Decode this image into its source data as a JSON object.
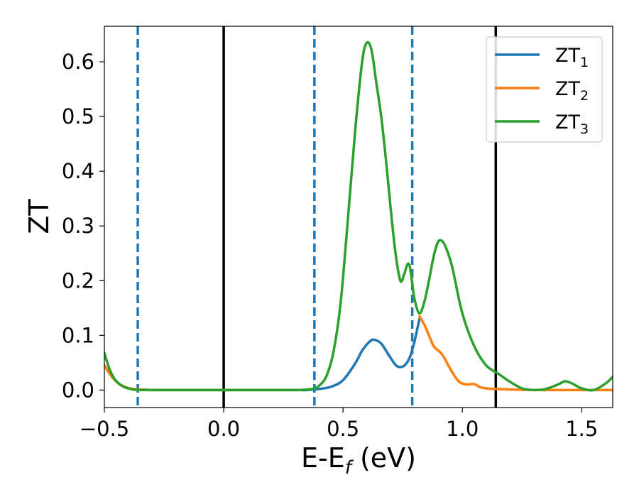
{
  "chart_data": {
    "type": "line",
    "xlabel": "E-E",
    "xlabel_subscript": "f",
    "xlabel_unit": " (eV)",
    "ylabel": "ZT",
    "xlim": [
      -0.5,
      1.63
    ],
    "ylim": [
      -0.032,
      0.665
    ],
    "xticks": [
      -0.5,
      0.0,
      0.5,
      1.0,
      1.5
    ],
    "xtick_labels": [
      "−0.5",
      "0.0",
      "0.5",
      "1.0",
      "1.5"
    ],
    "yticks": [
      0.0,
      0.1,
      0.2,
      0.3,
      0.4,
      0.5,
      0.6
    ],
    "ytick_labels": [
      "0.0",
      "0.1",
      "0.2",
      "0.3",
      "0.4",
      "0.5",
      "0.6"
    ],
    "grid": false,
    "legend_position": "top-right",
    "vertical_lines": [
      {
        "x": -0.36,
        "style": "dashed",
        "color": "#1f77b4"
      },
      {
        "x": 0.0,
        "style": "solid",
        "color": "#000000"
      },
      {
        "x": 0.38,
        "style": "dashed",
        "color": "#1f77b4"
      },
      {
        "x": 0.79,
        "style": "dashed",
        "color": "#1f77b4"
      },
      {
        "x": 1.14,
        "style": "solid",
        "color": "#000000"
      }
    ],
    "series": [
      {
        "name": "ZT",
        "subscript": "1",
        "color": "#1f77b4",
        "x": [
          -0.5,
          -0.47,
          -0.44,
          -0.41,
          -0.38,
          -0.35,
          -0.3,
          -0.2,
          0.0,
          0.2,
          0.3,
          0.35,
          0.4,
          0.45,
          0.5,
          0.55,
          0.58,
          0.61,
          0.63,
          0.66,
          0.69,
          0.72,
          0.74,
          0.76,
          0.78,
          0.8,
          0.82
        ],
        "y": [
          0.045,
          0.025,
          0.012,
          0.005,
          0.002,
          0.001,
          0.0,
          0.0,
          0.0,
          0.0,
          0.0,
          0.0,
          0.002,
          0.006,
          0.018,
          0.048,
          0.072,
          0.088,
          0.092,
          0.085,
          0.065,
          0.046,
          0.042,
          0.046,
          0.06,
          0.09,
          0.13
        ]
      },
      {
        "name": "ZT",
        "subscript": "2",
        "color": "#ff7f0e",
        "x": [
          -0.5,
          -0.47,
          -0.44,
          -0.41,
          -0.38,
          -0.35,
          -0.3,
          -0.2,
          0.0,
          0.2,
          0.3,
          0.82,
          0.84,
          0.86,
          0.88,
          0.9,
          0.92,
          0.95,
          0.98,
          1.0,
          1.02,
          1.05,
          1.07,
          1.1,
          1.14,
          1.2,
          1.3,
          1.4,
          1.5,
          1.63
        ],
        "y": [
          0.045,
          0.025,
          0.012,
          0.005,
          0.002,
          0.001,
          0.0,
          0.0,
          0.0,
          0.0,
          0.0,
          0.135,
          0.12,
          0.1,
          0.08,
          0.072,
          0.062,
          0.038,
          0.018,
          0.012,
          0.01,
          0.011,
          0.006,
          0.003,
          0.002,
          0.001,
          0.0,
          0.0,
          0.0,
          0.0
        ]
      },
      {
        "name": "ZT",
        "subscript": "3",
        "color": "#2ca02c",
        "x": [
          -0.5,
          -0.48,
          -0.46,
          -0.44,
          -0.42,
          -0.4,
          -0.38,
          -0.35,
          -0.3,
          -0.2,
          0.0,
          0.2,
          0.3,
          0.35,
          0.38,
          0.4,
          0.43,
          0.46,
          0.49,
          0.52,
          0.55,
          0.58,
          0.6,
          0.62,
          0.64,
          0.66,
          0.68,
          0.7,
          0.72,
          0.74,
          0.755,
          0.77,
          0.78,
          0.79,
          0.8,
          0.82,
          0.84,
          0.86,
          0.88,
          0.9,
          0.92,
          0.94,
          0.96,
          1.0,
          1.05,
          1.1,
          1.15,
          1.2,
          1.25,
          1.3,
          1.35,
          1.4,
          1.43,
          1.46,
          1.5,
          1.55,
          1.6,
          1.63
        ],
        "y": [
          0.068,
          0.04,
          0.022,
          0.012,
          0.006,
          0.003,
          0.001,
          0.0,
          0.0,
          0.0,
          0.0,
          0.0,
          0.0,
          0.001,
          0.003,
          0.008,
          0.025,
          0.07,
          0.16,
          0.31,
          0.47,
          0.6,
          0.635,
          0.62,
          0.56,
          0.5,
          0.42,
          0.33,
          0.25,
          0.2,
          0.21,
          0.23,
          0.225,
          0.195,
          0.165,
          0.14,
          0.16,
          0.2,
          0.245,
          0.272,
          0.27,
          0.25,
          0.22,
          0.14,
          0.08,
          0.045,
          0.03,
          0.015,
          0.003,
          0.0,
          0.002,
          0.01,
          0.016,
          0.012,
          0.003,
          0.0,
          0.012,
          0.024
        ]
      }
    ]
  }
}
